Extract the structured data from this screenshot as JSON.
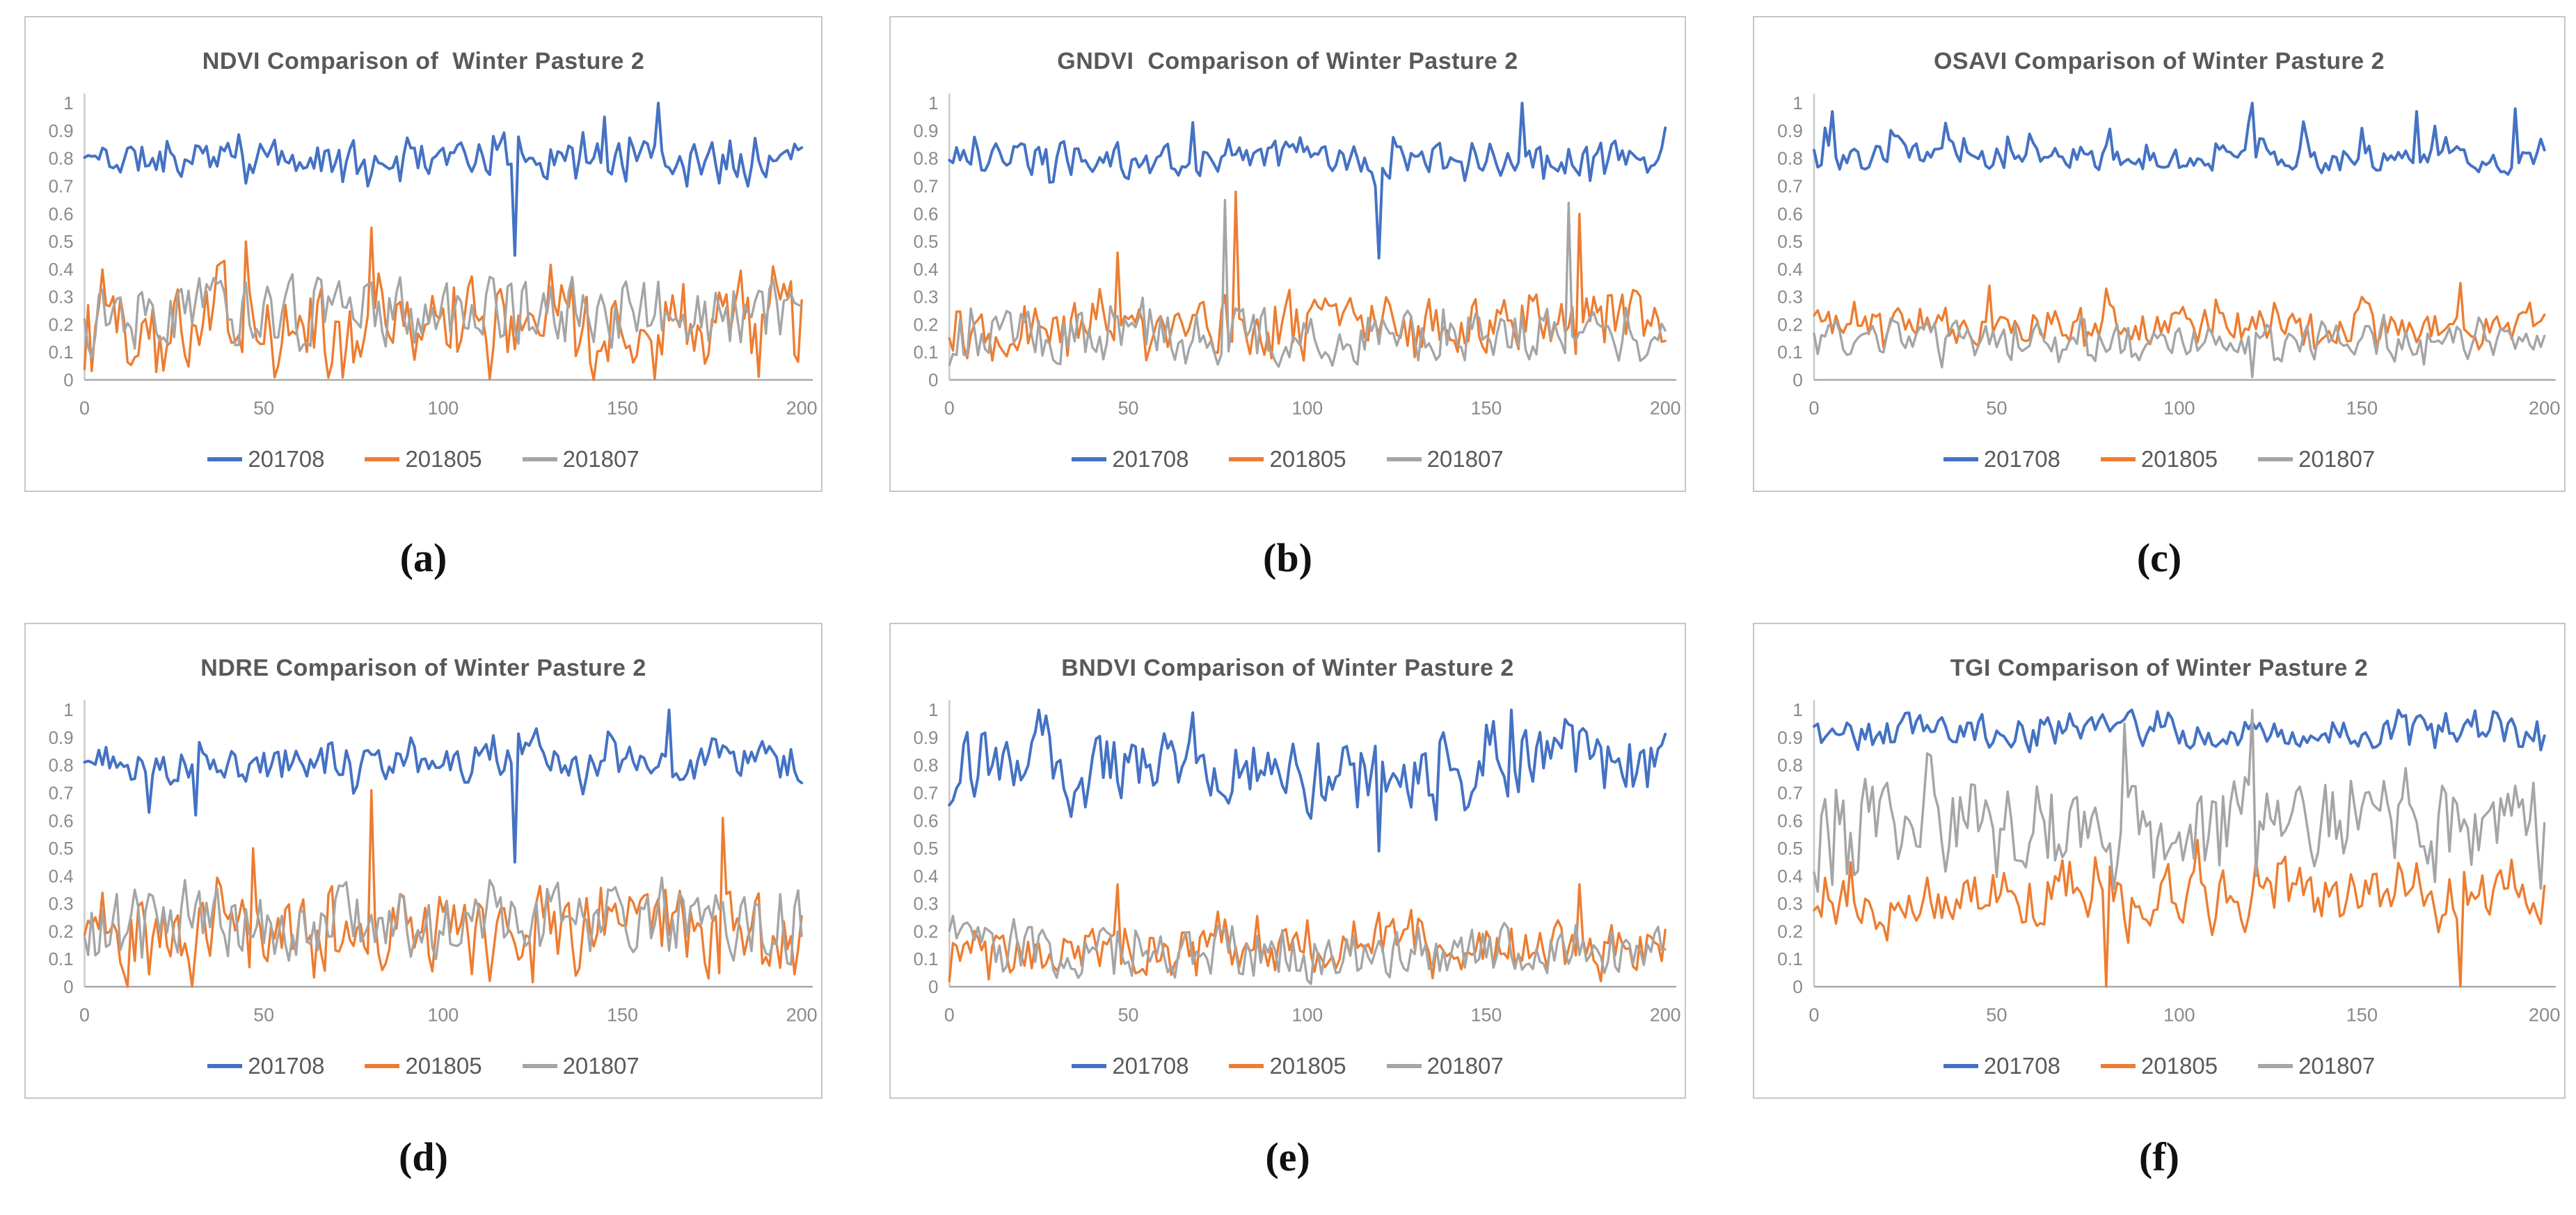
{
  "panel_labels": [
    "(a)",
    "(b)",
    "(c)",
    "(d)",
    "(e)",
    "(f)"
  ],
  "colors": {
    "series_blue": "#4472C4",
    "series_orange": "#ED7D31",
    "series_gray": "#A5A5A5",
    "y_axis_line": "#c9c9c9",
    "x_axis_line": "#a6a6a6",
    "tick_text": "#8a8a8a",
    "title_text": "#595959"
  },
  "chart_data": [
    {
      "type": "line",
      "title": "NDVI Comparison of  Winter Pasture 2",
      "xlabel": "",
      "ylabel": "",
      "x_range": [
        0,
        200
      ],
      "y_range": [
        0,
        1
      ],
      "x_ticks": [
        "0",
        "50",
        "100",
        "150",
        "200"
      ],
      "y_ticks": [
        "1",
        "0.9",
        "0.8",
        "0.7",
        "0.6",
        "0.5",
        "0.4",
        "0.3",
        "0.2",
        "0.1",
        "0"
      ],
      "grid": false,
      "legend_position": "bottom",
      "series": [
        {
          "name": "201708",
          "color_key": "series_blue",
          "seed": 11,
          "base": 0.8,
          "amp": 0.045,
          "amp2": 0.1,
          "p2": 0.15,
          "bias": 0,
          "min": 0.7,
          "max": 1.0,
          "anchors": [
            [
              120,
              0.45
            ],
            [
              145,
              0.95
            ],
            [
              160,
              1.0
            ]
          ]
        },
        {
          "name": "201805",
          "color_key": "series_orange",
          "seed": 12,
          "base": 0.21,
          "amp": 0.1,
          "amp2": 0.18,
          "p2": 0.3,
          "bias": 0,
          "min": 0.0,
          "max": 0.55,
          "anchors": [
            [
              45,
              0.5
            ],
            [
              80,
              0.55
            ]
          ]
        },
        {
          "name": "201807",
          "color_key": "series_gray",
          "seed": 13,
          "base": 0.25,
          "amp": 0.09,
          "amp2": 0.12,
          "p2": 0.25,
          "bias": 0,
          "min": 0.08,
          "max": 0.46,
          "anchors": []
        }
      ]
    },
    {
      "type": "line",
      "title": "GNDVI  Comparison of Winter Pasture 2",
      "xlabel": "",
      "ylabel": "",
      "x_range": [
        0,
        200
      ],
      "y_range": [
        0,
        1
      ],
      "x_ticks": [
        "0",
        "50",
        "100",
        "150",
        "200"
      ],
      "y_ticks": [
        "1",
        "0.9",
        "0.8",
        "0.7",
        "0.6",
        "0.5",
        "0.4",
        "0.3",
        "0.2",
        "0.1",
        "0"
      ],
      "grid": false,
      "legend_position": "bottom",
      "series": [
        {
          "name": "201708",
          "color_key": "series_blue",
          "seed": 21,
          "base": 0.8,
          "amp": 0.045,
          "amp2": 0.09,
          "p2": 0.15,
          "bias": 0,
          "min": 0.7,
          "max": 1.0,
          "anchors": [
            [
              120,
              0.44
            ],
            [
              160,
              1.0
            ],
            [
              68,
              0.93
            ]
          ]
        },
        {
          "name": "201805",
          "color_key": "series_orange",
          "seed": 22,
          "base": 0.2,
          "amp": 0.075,
          "amp2": 0.12,
          "p2": 0.25,
          "bias": 0,
          "min": 0.07,
          "max": 0.4,
          "anchors": [
            [
              47,
              0.46
            ],
            [
              80,
              0.68
            ],
            [
              176,
              0.6
            ]
          ]
        },
        {
          "name": "201807",
          "color_key": "series_gray",
          "seed": 23,
          "base": 0.16,
          "amp": 0.07,
          "amp2": 0.11,
          "p2": 0.25,
          "bias": 0,
          "min": 0.02,
          "max": 0.31,
          "anchors": [
            [
              77,
              0.65
            ],
            [
              173,
              0.64
            ]
          ]
        }
      ]
    },
    {
      "type": "line",
      "title": "OSAVI Comparison of Winter Pasture 2",
      "xlabel": "",
      "ylabel": "",
      "x_range": [
        0,
        200
      ],
      "y_range": [
        0,
        1
      ],
      "x_ticks": [
        "0",
        "50",
        "100",
        "150",
        "200"
      ],
      "y_ticks": [
        "1",
        "0.9",
        "0.8",
        "0.7",
        "0.6",
        "0.5",
        "0.4",
        "0.3",
        "0.2",
        "0.1",
        "0"
      ],
      "grid": false,
      "legend_position": "bottom",
      "series": [
        {
          "name": "201708",
          "color_key": "series_blue",
          "seed": 31,
          "base": 0.8,
          "amp": 0.035,
          "amp2": 0.18,
          "p2": 0.13,
          "bias": 1,
          "min": 0.7,
          "max": 1.0,
          "anchors": [
            [
              5,
              0.97
            ],
            [
              120,
              1.0
            ],
            [
              165,
              0.97
            ],
            [
              192,
              0.98
            ]
          ]
        },
        {
          "name": "201805",
          "color_key": "series_orange",
          "seed": 32,
          "base": 0.2,
          "amp": 0.045,
          "amp2": 0.09,
          "p2": 0.25,
          "bias": 0,
          "min": 0.05,
          "max": 0.3,
          "anchors": [
            [
              48,
              0.34
            ],
            [
              80,
              0.33
            ],
            [
              177,
              0.35
            ]
          ]
        },
        {
          "name": "201807",
          "color_key": "series_gray",
          "seed": 33,
          "base": 0.14,
          "amp": 0.045,
          "amp2": 0.08,
          "p2": 0.25,
          "bias": 0,
          "min": 0.03,
          "max": 0.27,
          "anchors": [
            [
              120,
              0.01
            ]
          ]
        }
      ]
    },
    {
      "type": "line",
      "title": "NDRE Comparison of Winter Pasture 2",
      "xlabel": "",
      "ylabel": "",
      "x_range": [
        0,
        200
      ],
      "y_range": [
        0,
        1
      ],
      "x_ticks": [
        "0",
        "50",
        "100",
        "150",
        "200"
      ],
      "y_ticks": [
        "1",
        "0.9",
        "0.8",
        "0.7",
        "0.6",
        "0.5",
        "0.4",
        "0.3",
        "0.2",
        "0.1",
        "0"
      ],
      "grid": false,
      "legend_position": "bottom",
      "series": [
        {
          "name": "201708",
          "color_key": "series_blue",
          "seed": 41,
          "base": 0.81,
          "amp": 0.05,
          "amp2": 0.1,
          "p2": 0.18,
          "bias": 0,
          "min": 0.62,
          "max": 1.0,
          "anchors": [
            [
              18,
              0.63
            ],
            [
              31,
              0.62
            ],
            [
              120,
              0.45
            ],
            [
              163,
              1.0
            ]
          ]
        },
        {
          "name": "201805",
          "color_key": "series_orange",
          "seed": 42,
          "base": 0.2,
          "amp": 0.1,
          "amp2": 0.16,
          "p2": 0.3,
          "bias": 0,
          "min": 0.0,
          "max": 0.45,
          "anchors": [
            [
              47,
              0.5
            ],
            [
              80,
              0.71
            ],
            [
              178,
              0.61
            ]
          ]
        },
        {
          "name": "201807",
          "color_key": "series_gray",
          "seed": 43,
          "base": 0.23,
          "amp": 0.09,
          "amp2": 0.13,
          "p2": 0.25,
          "bias": 0,
          "min": 0.08,
          "max": 0.47,
          "anchors": []
        }
      ]
    },
    {
      "type": "line",
      "title": "BNDVI Comparison of Winter Pasture 2",
      "xlabel": "",
      "ylabel": "",
      "x_range": [
        0,
        200
      ],
      "y_range": [
        0,
        1
      ],
      "x_ticks": [
        "0",
        "50",
        "100",
        "150",
        "200"
      ],
      "y_ticks": [
        "1",
        "0.9",
        "0.8",
        "0.7",
        "0.6",
        "0.5",
        "0.4",
        "0.3",
        "0.2",
        "0.1",
        "0"
      ],
      "grid": false,
      "legend_position": "bottom",
      "series": [
        {
          "name": "201708",
          "color_key": "series_blue",
          "seed": 51,
          "base": 0.8,
          "amp": 0.08,
          "amp2": 0.15,
          "p2": 0.25,
          "bias": 0,
          "min": 0.58,
          "max": 1.0,
          "anchors": [
            [
              25,
              1.0
            ],
            [
              68,
              0.99
            ],
            [
              120,
              0.49
            ],
            [
              157,
              1.0
            ]
          ]
        },
        {
          "name": "201805",
          "color_key": "series_orange",
          "seed": 52,
          "base": 0.14,
          "amp": 0.065,
          "amp2": 0.11,
          "p2": 0.25,
          "bias": 0,
          "min": 0.02,
          "max": 0.31,
          "anchors": [
            [
              47,
              0.37
            ],
            [
              176,
              0.37
            ]
          ]
        },
        {
          "name": "201807",
          "color_key": "series_gray",
          "seed": 53,
          "base": 0.13,
          "amp": 0.065,
          "amp2": 0.1,
          "p2": 0.25,
          "bias": 0,
          "min": 0.01,
          "max": 0.31,
          "anchors": []
        }
      ]
    },
    {
      "type": "line",
      "title": "TGI Comparison of Winter Pasture 2",
      "xlabel": "",
      "ylabel": "",
      "x_range": [
        0,
        200
      ],
      "y_range": [
        0,
        1
      ],
      "x_ticks": [
        "0",
        "50",
        "100",
        "150",
        "200"
      ],
      "y_ticks": [
        "1",
        "0.9",
        "0.8",
        "0.7",
        "0.6",
        "0.5",
        "0.4",
        "0.3",
        "0.2",
        "0.1",
        "0"
      ],
      "grid": false,
      "legend_position": "bottom",
      "series": [
        {
          "name": "201708",
          "color_key": "series_blue",
          "seed": 61,
          "base": 0.92,
          "amp": 0.04,
          "amp2": 0.07,
          "p2": 0.3,
          "bias": 0,
          "min": 0.79,
          "max": 1.0,
          "anchors": []
        },
        {
          "name": "201805",
          "color_key": "series_orange",
          "seed": 62,
          "base": 0.33,
          "amp": 0.07,
          "amp2": 0.13,
          "p2": 0.3,
          "bias": 0,
          "min": 0.1,
          "max": 0.53,
          "anchors": [
            [
              80,
              0.0
            ],
            [
              105,
              0.53
            ],
            [
              177,
              0.0
            ]
          ]
        },
        {
          "name": "201807",
          "color_key": "series_gray",
          "seed": 63,
          "base": 0.6,
          "amp": 0.11,
          "amp2": 0.2,
          "p2": 0.3,
          "bias": 0,
          "min": 0.3,
          "max": 1.0,
          "anchors": [
            [
              85,
              0.95
            ],
            [
              120,
              1.0
            ]
          ]
        }
      ]
    }
  ]
}
